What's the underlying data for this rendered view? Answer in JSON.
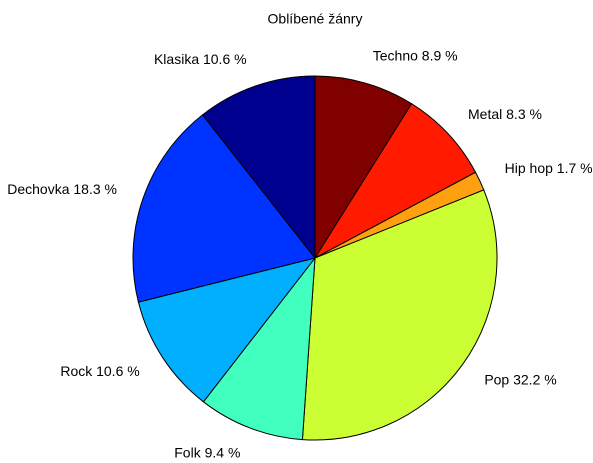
{
  "chart_data": {
    "type": "pie",
    "title": "Oblíbené žánry",
    "categories": [
      "Techno 8.9 %",
      "Metal 8.3 %",
      "Hip hop 1.7 %",
      "Pop 32.2 %",
      "Folk 9.4 %",
      "Rock 10.6 %",
      "Dechovka 18.3 %",
      "Klasika 10.6 %"
    ],
    "values": [
      8.9,
      8.3,
      1.7,
      32.2,
      9.4,
      10.6,
      18.3,
      10.6
    ],
    "colors": [
      "#800000",
      "#ff1a00",
      "#ffa010",
      "#ccff33",
      "#40ffbf",
      "#00b0ff",
      "#0033ff",
      "#00008f"
    ]
  }
}
